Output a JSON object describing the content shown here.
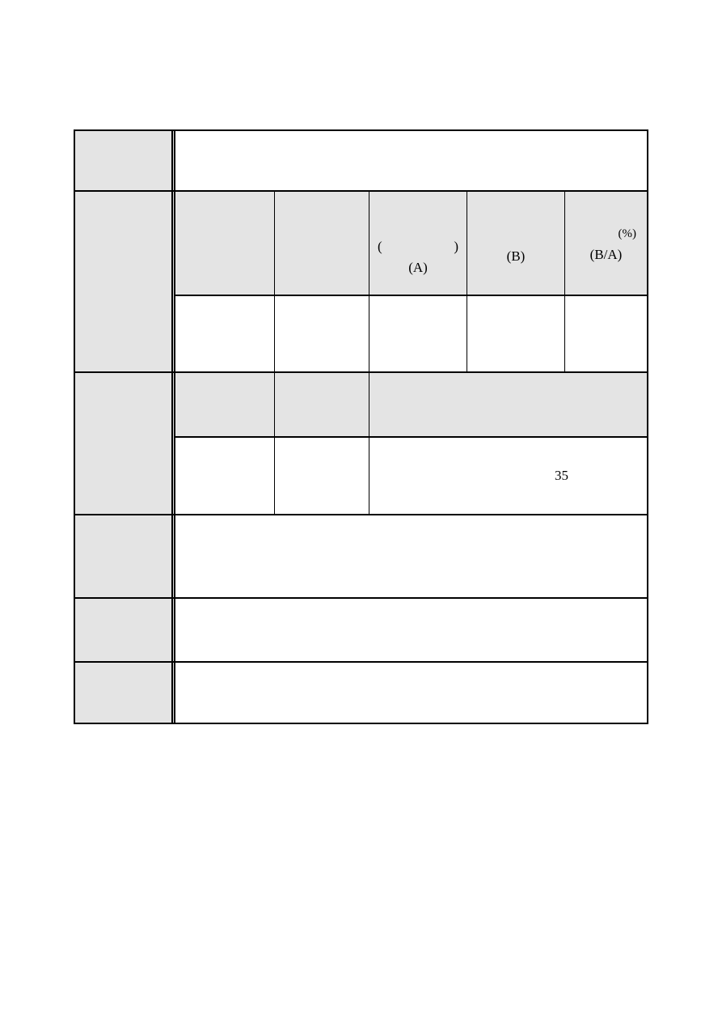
{
  "page": {
    "background_color": "#ffffff"
  },
  "table": {
    "style": {
      "shaded_cell_color": "#e4e4e4",
      "border_color": "#000000"
    },
    "subheader": {
      "col3_amount_a": {
        "paren_open": "(",
        "paren_close": ")",
        "code": "(A)"
      },
      "col4_amount_b": {
        "code": "(B)"
      },
      "col5_rate": {
        "unit": "(%)",
        "code": "(B/A)"
      }
    },
    "measure_row": {
      "value": "35"
    }
  }
}
